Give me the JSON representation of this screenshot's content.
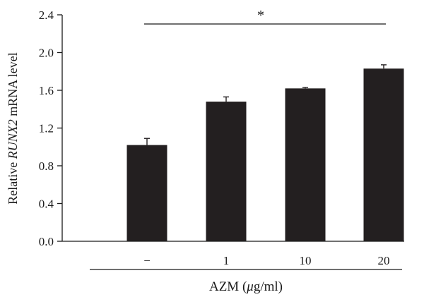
{
  "chart_data": {
    "type": "bar",
    "categories": [
      "−",
      "1",
      "10",
      "20"
    ],
    "values": [
      1.02,
      1.48,
      1.62,
      1.83
    ],
    "errors": [
      0.07,
      0.05,
      0.01,
      0.04
    ],
    "ylabel_pre": "Relative ",
    "ylabel_gene": "RUNX2",
    "ylabel_post": " mRNA level",
    "xlabel_pre": "AZM (",
    "xlabel_mu": "μ",
    "xlabel_post": "g/ml)",
    "ylim": [
      0,
      2.4
    ],
    "yticks": [
      "0.0",
      "0.4",
      "0.8",
      "1.2",
      "1.6",
      "2.0",
      "2.4"
    ],
    "significance": "*",
    "bar_color": "#231f20",
    "grid": false
  }
}
